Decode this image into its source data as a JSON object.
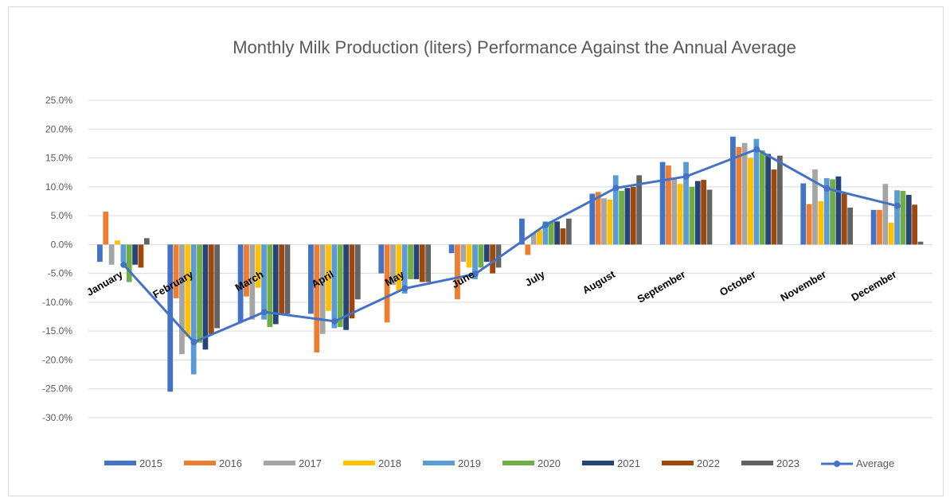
{
  "chart_data": {
    "type": "bar",
    "title": "Monthly Milk Production (liters) Performance Against the Annual Average",
    "xlabel": "",
    "ylabel": "",
    "ylim": [
      -30,
      25
    ],
    "y_ticks": [
      "25.0%",
      "20.0%",
      "15.0%",
      "10.0%",
      "5.0%",
      "0.0%",
      "-5.0%",
      "-10.0%",
      "-15.0%",
      "-20.0%",
      "-25.0%",
      "-30.0%"
    ],
    "y_tick_values": [
      25,
      20,
      15,
      10,
      5,
      0,
      -5,
      -10,
      -15,
      -20,
      -25,
      -30
    ],
    "grid": true,
    "legend_position": "bottom",
    "categories": [
      "January",
      "February",
      "March",
      "April",
      "May",
      "June",
      "July",
      "August",
      "September",
      "October",
      "November",
      "December"
    ],
    "series": [
      {
        "name": "2015",
        "color": "#4472C4",
        "values": [
          -3.0,
          -25.5,
          -13.5,
          -12.0,
          -5.0,
          -1.5,
          4.5,
          8.8,
          14.3,
          18.7,
          10.6,
          6.0
        ]
      },
      {
        "name": "2016",
        "color": "#ED7D31",
        "values": [
          5.7,
          -9.3,
          -9.0,
          -18.7,
          -13.5,
          -9.5,
          -1.8,
          9.1,
          13.7,
          16.9,
          7.0,
          6.0
        ]
      },
      {
        "name": "2017",
        "color": "#A5A5A5",
        "values": [
          -3.5,
          -19.0,
          -13.0,
          -15.5,
          -7.0,
          -3.0,
          2.0,
          8.0,
          11.5,
          17.6,
          13.0,
          10.5
        ]
      },
      {
        "name": "2018",
        "color": "#FFC000",
        "values": [
          0.7,
          -16.0,
          -7.5,
          -11.5,
          -8.0,
          -4.0,
          2.5,
          7.8,
          10.5,
          15.0,
          7.5,
          3.8
        ]
      },
      {
        "name": "2019",
        "color": "#5B9BD5",
        "values": [
          -3.0,
          -22.5,
          -13.0,
          -14.5,
          -8.5,
          -6.0,
          4.0,
          12.0,
          14.3,
          18.3,
          11.5,
          9.4
        ]
      },
      {
        "name": "2020",
        "color": "#70AD47",
        "values": [
          -6.5,
          -17.0,
          -14.3,
          -14.3,
          -6.0,
          -4.0,
          4.0,
          9.3,
          10.0,
          16.3,
          11.3,
          9.3
        ]
      },
      {
        "name": "2021",
        "color": "#264478",
        "values": [
          -3.5,
          -18.2,
          -13.8,
          -14.8,
          -6.0,
          -3.0,
          4.0,
          9.8,
          11.0,
          15.7,
          11.8,
          8.6
        ]
      },
      {
        "name": "2022",
        "color": "#9E480E",
        "values": [
          -4.0,
          -15.5,
          -12.0,
          -12.8,
          -6.5,
          -5.0,
          2.8,
          10.0,
          11.2,
          13.0,
          8.8,
          6.9
        ]
      },
      {
        "name": "2023",
        "color": "#636363",
        "values": [
          1.1,
          -14.5,
          -12.0,
          -9.5,
          -6.5,
          -4.0,
          4.5,
          12.0,
          9.5,
          15.4,
          6.4,
          0.5
        ]
      }
    ],
    "line_series": {
      "name": "Average",
      "color": "#4472C4",
      "values": [
        -3.5,
        -16.9,
        -11.7,
        -13.3,
        -7.6,
        -5.1,
        3.4,
        9.8,
        11.8,
        16.5,
        9.7,
        6.7
      ]
    }
  }
}
